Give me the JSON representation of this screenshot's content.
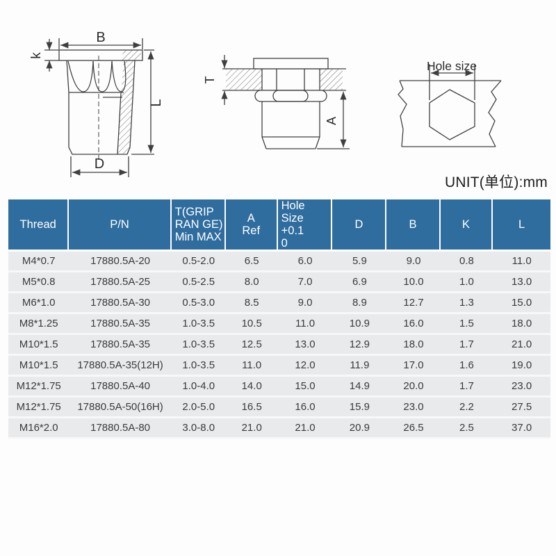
{
  "page": {
    "unit_label": "UNIT(单位):mm"
  },
  "diagrams": {
    "side_view": {
      "b": "B",
      "k": "k",
      "l": "L",
      "d": "D"
    },
    "installed_view": {
      "t": "T",
      "a": "A"
    },
    "hole_view": {
      "hole_size": "Hole size"
    }
  },
  "table": {
    "columns": [
      {
        "key": "thread",
        "label_lines": [
          "Thread"
        ],
        "align": "center",
        "width_pct": 11.2
      },
      {
        "key": "pn",
        "label_lines": [
          "P/N"
        ],
        "align": "center",
        "width_pct": 18.9
      },
      {
        "key": "t-grip-range",
        "label_lines": [
          "T(GRIP",
          "RAN GE)",
          "Min MAX"
        ],
        "align": "left",
        "width_pct": 10.0
      },
      {
        "key": "a-ref",
        "label_lines": [
          "A",
          "Ref"
        ],
        "align": "center",
        "width_pct": 9.6
      },
      {
        "key": "hole-size",
        "label_lines": [
          "Hole Size",
          "+0.1",
          "0"
        ],
        "align": "left",
        "width_pct": 10.1
      },
      {
        "key": "d",
        "label_lines": [
          "D"
        ],
        "align": "center",
        "width_pct": 10.0
      },
      {
        "key": "b",
        "label_lines": [
          "B"
        ],
        "align": "center",
        "width_pct": 9.9
      },
      {
        "key": "k",
        "label_lines": [
          "K"
        ],
        "align": "center",
        "width_pct": 9.7
      },
      {
        "key": "l",
        "label_lines": [
          "L"
        ],
        "align": "center",
        "width_pct": 10.6
      }
    ],
    "rows": [
      [
        "M4*0.7",
        "17880.5A-20",
        "0.5-2.0",
        "6.5",
        "6.0",
        "5.9",
        "9.0",
        "0.8",
        "11.0"
      ],
      [
        "M5*0.8",
        "17880.5A-25",
        "0.5-2.5",
        "8.0",
        "7.0",
        "6.9",
        "10.0",
        "1.0",
        "13.0"
      ],
      [
        "M6*1.0",
        "17880.5A-30",
        "0.5-3.0",
        "8.5",
        "9.0",
        "8.9",
        "12.7",
        "1.3",
        "15.0"
      ],
      [
        "M8*1.25",
        "17880.5A-35",
        "1.0-3.5",
        "10.5",
        "11.0",
        "10.9",
        "16.0",
        "1.5",
        "18.0"
      ],
      [
        "M10*1.5",
        "17880.5A-35",
        "1.0-3.5",
        "12.5",
        "13.0",
        "12.9",
        "18.0",
        "1.7",
        "21.0"
      ],
      [
        "M10*1.5",
        "17880.5A-35(12H)",
        "1.0-3.5",
        "11.0",
        "12.0",
        "11.9",
        "17.0",
        "1.6",
        "19.0"
      ],
      [
        "M12*1.75",
        "17880.5A-40",
        "1.0-4.0",
        "14.0",
        "15.0",
        "14.9",
        "20.0",
        "1.7",
        "23.0"
      ],
      [
        "M12*1.75",
        "17880.5A-50(16H)",
        "2.0-5.0",
        "16.5",
        "16.0",
        "15.9",
        "23.0",
        "2.2",
        "27.5"
      ],
      [
        "M16*2.0",
        "17880.5A-80",
        "3.0-8.0",
        "21.0",
        "21.0",
        "20.9",
        "26.5",
        "2.5",
        "37.0"
      ]
    ]
  },
  "colors": {
    "header_bg": "#2f6d9f",
    "header_text": "#ffffff",
    "row_bg": "#e9eaec",
    "row_sep": "#f8f8fa",
    "body_text": "#3a3a3a",
    "line": "#3f3f3f"
  }
}
